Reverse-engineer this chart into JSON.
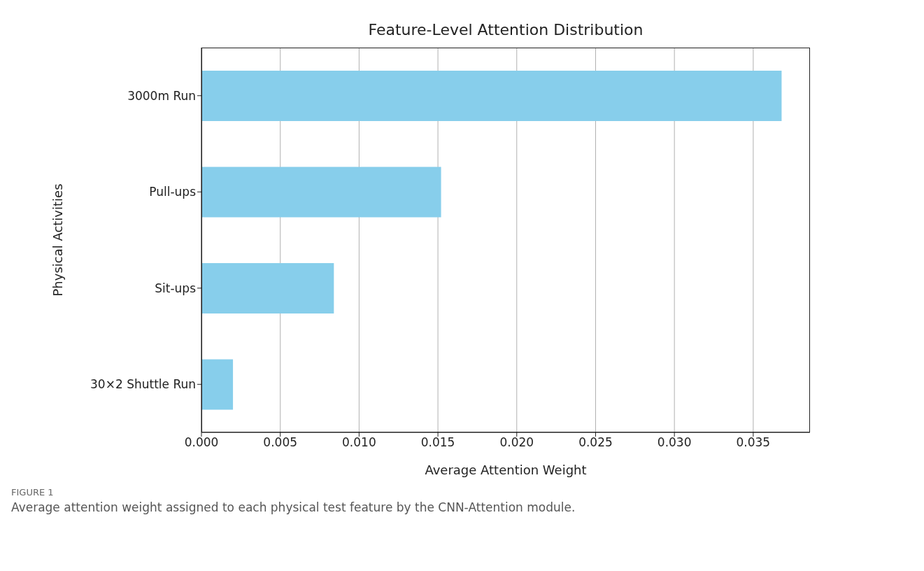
{
  "chart_data": {
    "type": "bar",
    "orientation": "horizontal",
    "title": "Feature-Level Attention Distribution",
    "xlabel": "Average Attention Weight",
    "ylabel": "Physical Activities",
    "categories": [
      "3000m Run",
      "Pull-ups",
      "Sit-ups",
      "30×2 Shuttle Run"
    ],
    "values": [
      0.0368,
      0.0152,
      0.0084,
      0.002
    ],
    "color": "#87ceeb",
    "xlim": [
      0,
      0.0386
    ],
    "xticks": [
      {
        "value": 0,
        "label": "0.000"
      },
      {
        "value": 0.005,
        "label": "0.005"
      },
      {
        "value": 0.01,
        "label": "0.010"
      },
      {
        "value": 0.015,
        "label": "0.015"
      },
      {
        "value": 0.02,
        "label": "0.020"
      },
      {
        "value": 0.025,
        "label": "0.025"
      },
      {
        "value": 0.03,
        "label": "0.030"
      },
      {
        "value": 0.035,
        "label": "0.035"
      }
    ],
    "grid": "x",
    "annotations": [
      "FIGURE 1",
      "Average attention weight assigned to each physical test feature by the CNN-Attention module."
    ]
  }
}
